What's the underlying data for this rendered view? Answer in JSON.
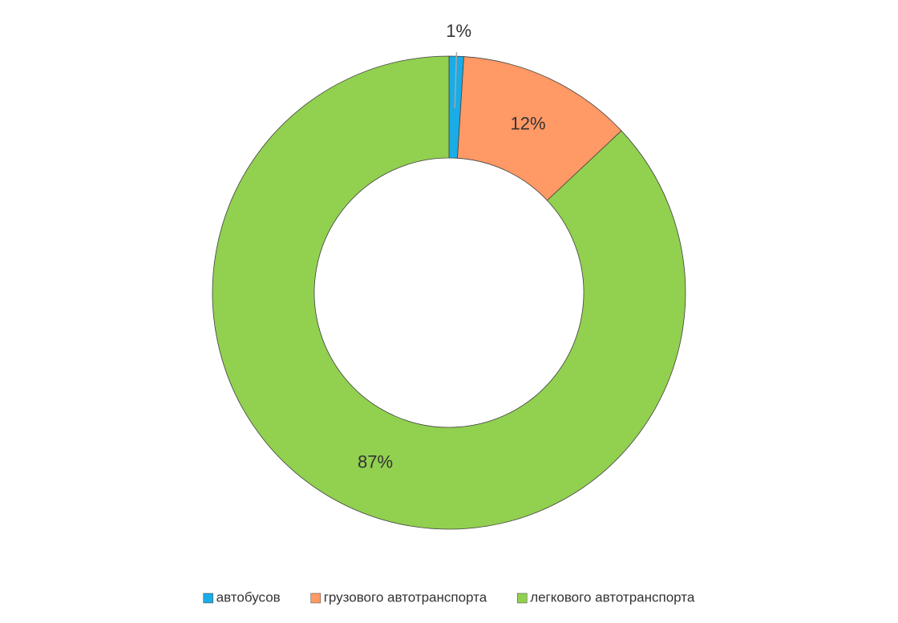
{
  "chart_data": {
    "type": "donut",
    "categories": [
      "автобусов",
      "грузового автотранспорта",
      "легкового автотранспорта"
    ],
    "values": [
      1,
      12,
      87
    ],
    "value_labels": [
      "1%",
      "12%",
      "87%"
    ],
    "colors": [
      "#1aace6",
      "#ff9966",
      "#92d050"
    ],
    "legend": "bottom"
  }
}
